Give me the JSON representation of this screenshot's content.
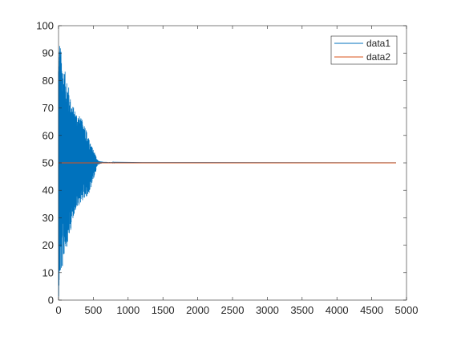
{
  "chart_data": {
    "type": "line",
    "title": "",
    "xlabel": "",
    "ylabel": "",
    "xlim": [
      0,
      5000
    ],
    "ylim": [
      0,
      100
    ],
    "x_ticks": [
      0,
      500,
      1000,
      1500,
      2000,
      2500,
      3000,
      3500,
      4000,
      4500,
      5000
    ],
    "x_tick_labels": [
      "0",
      "500",
      "1000",
      "1500",
      "2000",
      "2500",
      "3000",
      "3500",
      "4000",
      "4500",
      "5000"
    ],
    "y_ticks": [
      0,
      10,
      20,
      30,
      40,
      50,
      60,
      70,
      80,
      90,
      100
    ],
    "y_tick_labels": [
      "0",
      "10",
      "20",
      "30",
      "40",
      "50",
      "60",
      "70",
      "80",
      "90",
      "100"
    ],
    "grid": false,
    "legend": "top-right",
    "x_range": [
      0,
      4850
    ],
    "series": [
      {
        "name": "data1",
        "color": "#0072BD",
        "description_points": [
          [
            0,
            50
          ],
          [
            30,
            96
          ],
          [
            100,
            10
          ],
          [
            150,
            83
          ],
          [
            200,
            20
          ],
          [
            300,
            72
          ],
          [
            350,
            30
          ],
          [
            400,
            65
          ],
          [
            450,
            40
          ],
          [
            500,
            56
          ],
          [
            550,
            48
          ],
          [
            600,
            50.3
          ],
          [
            700,
            50.1
          ],
          [
            4850,
            50
          ]
        ]
      },
      {
        "name": "data2",
        "color": "#D95319",
        "points": [
          [
            0,
            50
          ],
          [
            4850,
            50
          ]
        ]
      }
    ]
  }
}
